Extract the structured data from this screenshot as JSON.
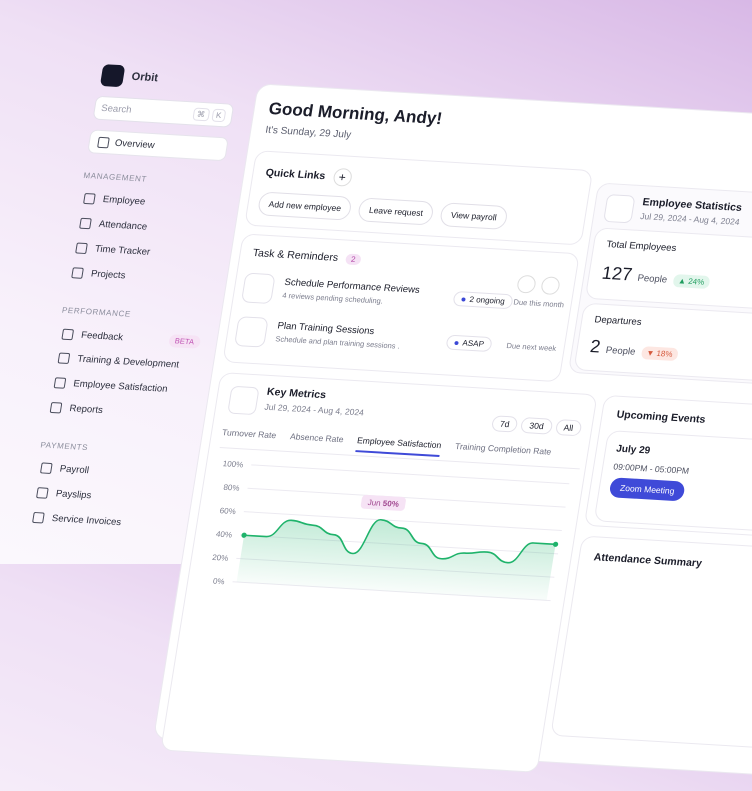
{
  "sidebar": {
    "brand": "Orbit",
    "search": "Search",
    "shortcut": [
      "⌘",
      "K"
    ],
    "overview": "Overview",
    "badge": "BETA",
    "sections": [
      {
        "title": "MANAGEMENT",
        "items": [
          "Employee",
          "Attendance",
          "Time Tracker",
          "Projects"
        ]
      },
      {
        "title": "PERFORMANCE",
        "items": [
          "Feedback",
          "Training & Development",
          "Employee Satisfaction",
          "Reports"
        ]
      },
      {
        "title": "PAYMENTS",
        "items": [
          "Payroll",
          "Payslips",
          "Service Invoices"
        ]
      }
    ]
  },
  "header": {
    "greeting": "Good Morning, Andy!",
    "date": "It's Sunday, 29 July"
  },
  "quick_links": {
    "title": "Quick Links",
    "buttons": [
      "Add new employee",
      "Leave request",
      "View payroll"
    ]
  },
  "tasks": {
    "title": "Task & Reminders",
    "count": 2,
    "items": [
      {
        "title": "Schedule Performance Reviews",
        "subtitle": "4 reviews pending scheduling.",
        "status": "2 ongoing",
        "due": "Due this month"
      },
      {
        "title": "Plan Training Sessions",
        "subtitle": "Schedule and plan training sessions .",
        "status": "ASAP",
        "due": "Due next week"
      }
    ]
  },
  "key_metrics": {
    "title": "Key Metrics",
    "range": "Jul 29, 2024 - Aug 4, 2024",
    "periods": [
      "7d",
      "30d",
      "All"
    ],
    "tabs": [
      "Turnover Rate",
      "Absence Rate",
      "Employee Satisfaction",
      "Training Completion Rate"
    ],
    "active_tab": "Employee Satisfaction"
  },
  "chart_data": {
    "type": "line",
    "values": [
      40,
      40,
      55,
      52,
      45,
      30,
      60,
      54,
      42,
      30,
      36,
      38,
      30,
      48,
      48
    ],
    "color": "#1fb36b",
    "ylim": [
      0,
      100
    ],
    "yticks": [
      {
        "value": 0,
        "label": "0%"
      },
      {
        "value": 20,
        "label": "20%"
      },
      {
        "value": 40,
        "label": "40%"
      },
      {
        "value": 60,
        "label": "60%"
      },
      {
        "value": 80,
        "label": "80%"
      },
      {
        "value": 100,
        "label": "100%"
      }
    ],
    "grid": true,
    "annotation": {
      "label": "Jun",
      "value": "50%"
    }
  },
  "employee_stats": {
    "title": "Employee Statistics",
    "range": "Jul 29, 2024 - Aug 4, 2024",
    "total": {
      "label": "Total Employees",
      "value": 127,
      "unit": "People",
      "change": "24%"
    },
    "departures": {
      "label": "Departures",
      "value": 2,
      "unit": "People",
      "change": "18%"
    }
  },
  "events": {
    "title": "Upcoming Events",
    "date": "July 29",
    "time": "09:00PM - 05:00PM",
    "button": "Zoom Meeting"
  },
  "attendance": {
    "title": "Attendance Summary"
  }
}
